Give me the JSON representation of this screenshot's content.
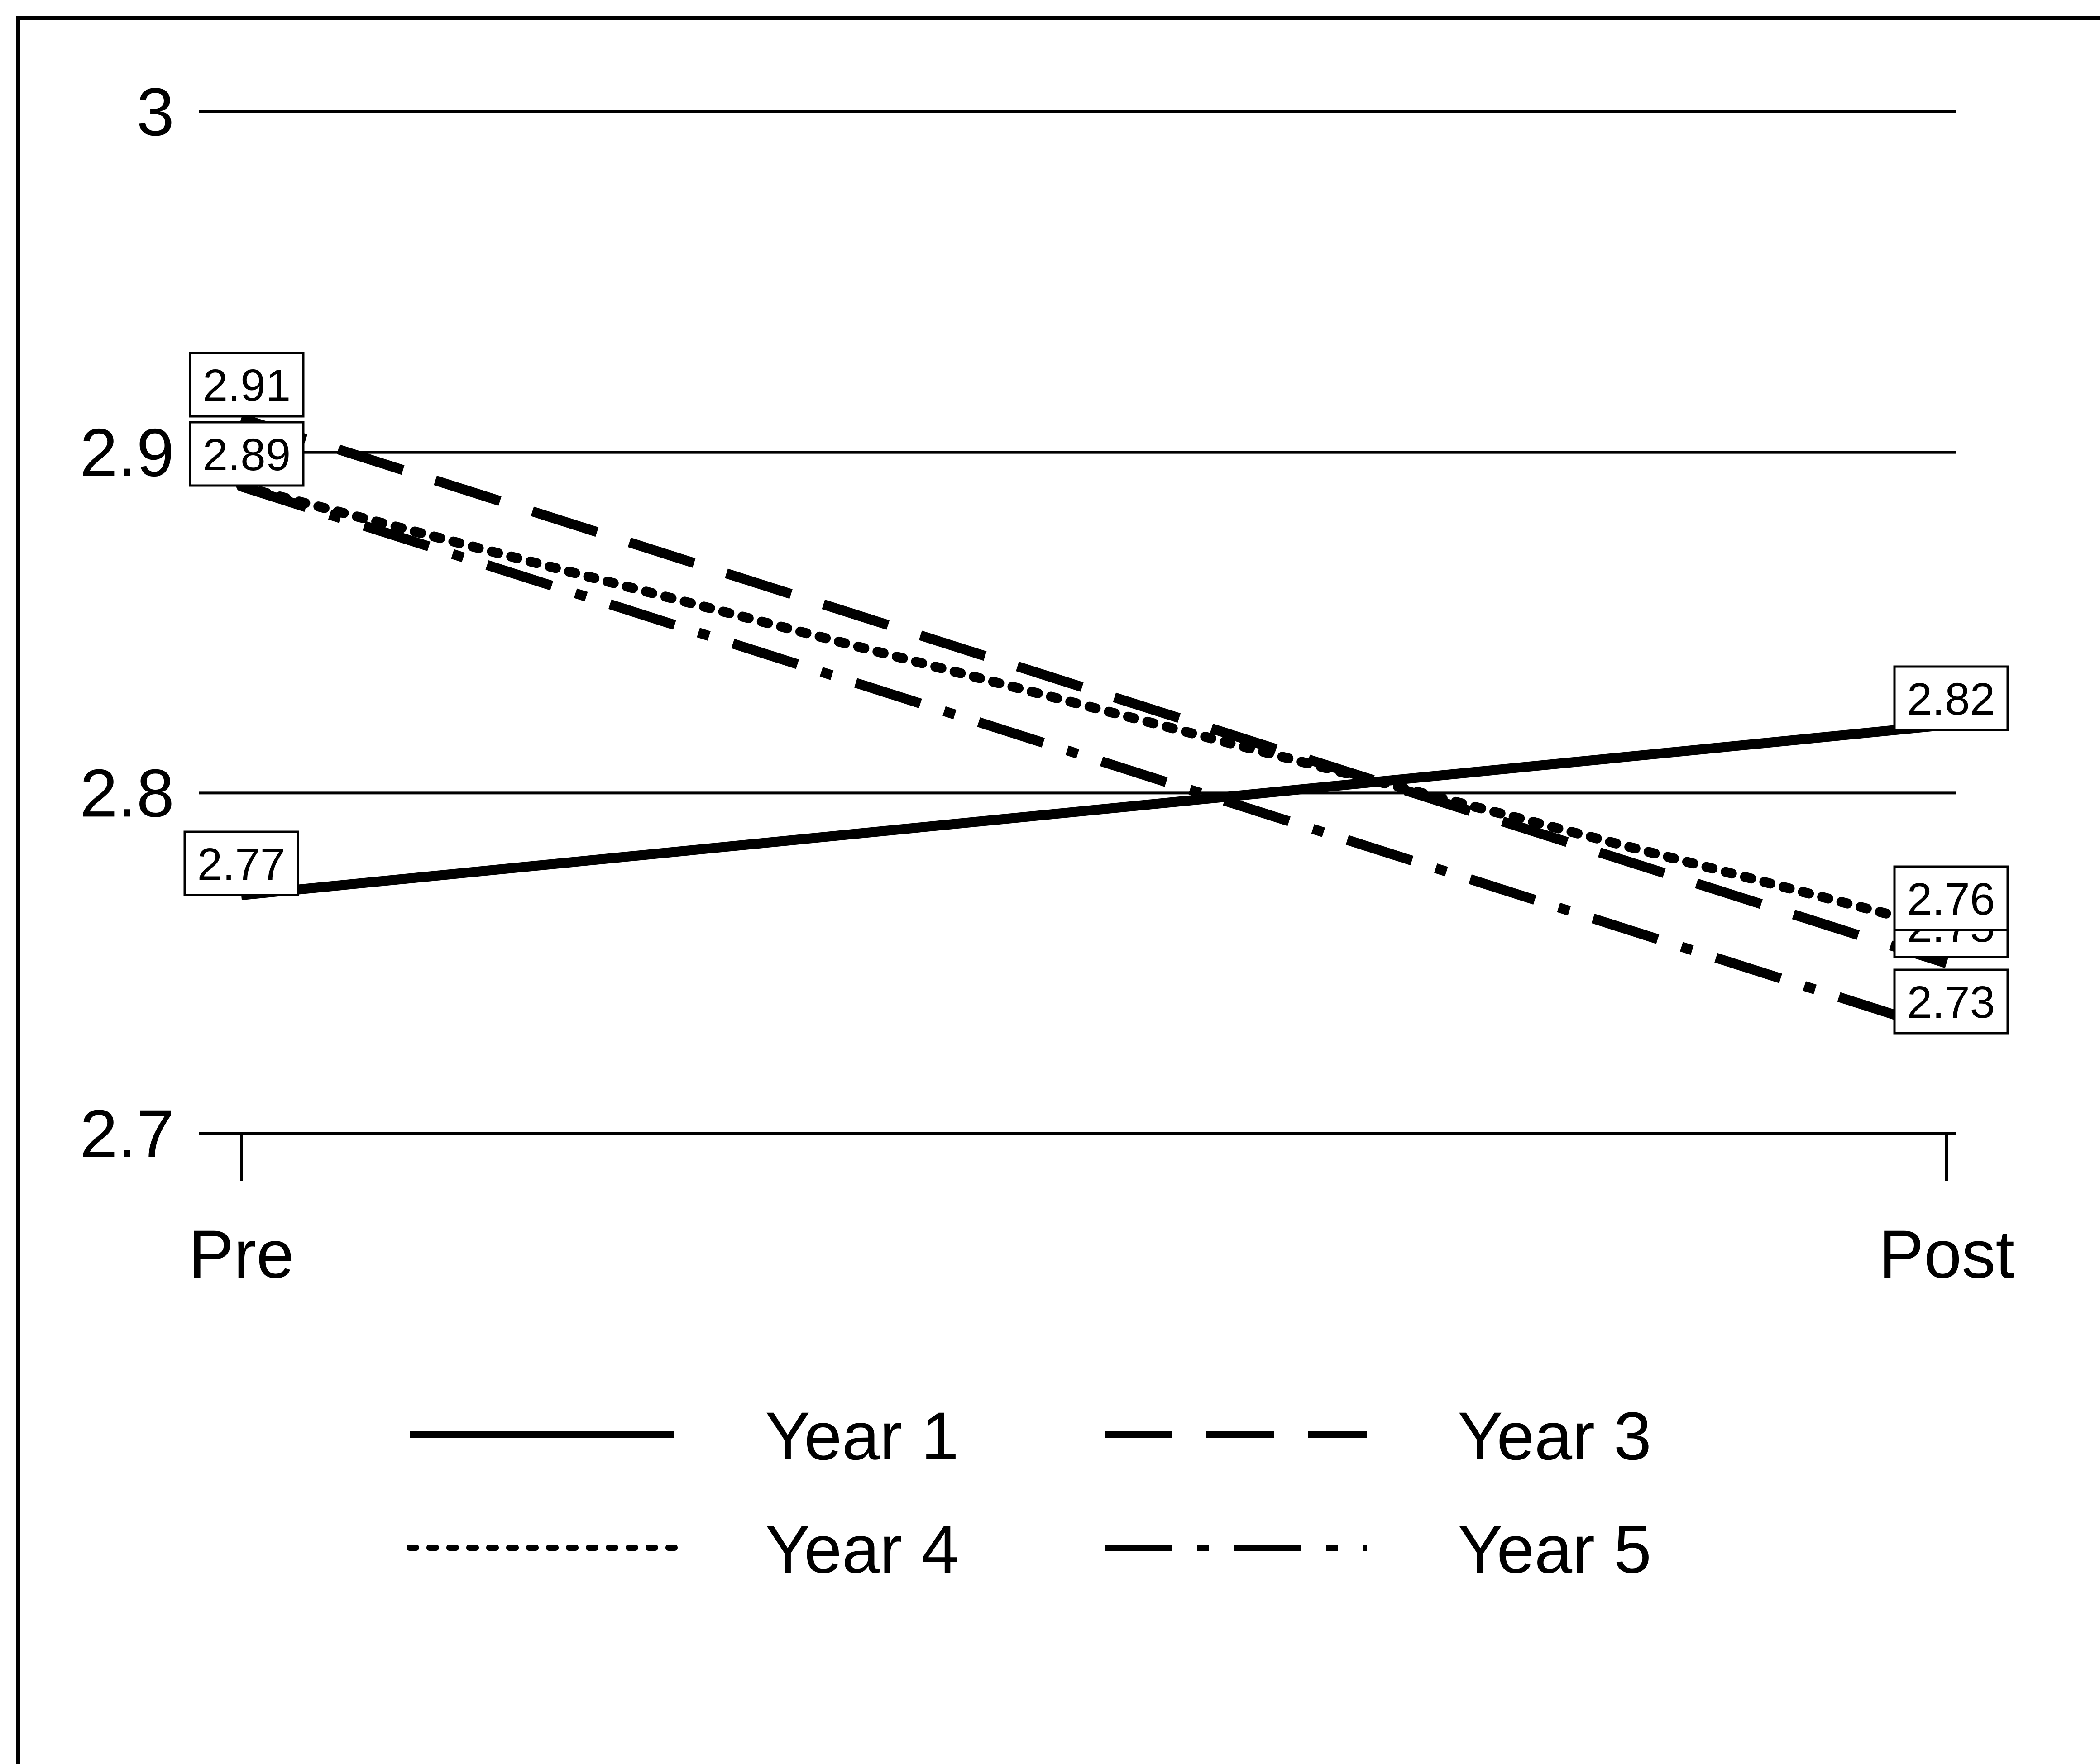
{
  "chart_data": {
    "type": "line",
    "title": "",
    "xlabel": "",
    "ylabel": "",
    "categories": [
      "Pre",
      "Post"
    ],
    "ylim": [
      2.7,
      3.0
    ],
    "yticks": [
      2.7,
      2.8,
      2.9,
      3
    ],
    "ytick_labels": [
      "2.7",
      "2.8",
      "2.9",
      "3"
    ],
    "grid": true,
    "legend_position": "bottom",
    "series": [
      {
        "name": "Year 1",
        "values": [
          2.77,
          2.82
        ],
        "labels": [
          "2.77",
          "2.82"
        ],
        "line_style": "solid"
      },
      {
        "name": "Year 3",
        "values": [
          2.91,
          2.75
        ],
        "labels": [
          "2.91",
          "2.75"
        ],
        "line_style": "dashed"
      },
      {
        "name": "Year 4",
        "values": [
          2.89,
          2.76
        ],
        "labels": [
          "2.89",
          "2.76"
        ],
        "line_style": "dotted"
      },
      {
        "name": "Year 5",
        "values": [
          2.89,
          2.73
        ],
        "labels": [
          "2.89",
          "2.73"
        ],
        "line_style": "dash-dot"
      }
    ]
  }
}
